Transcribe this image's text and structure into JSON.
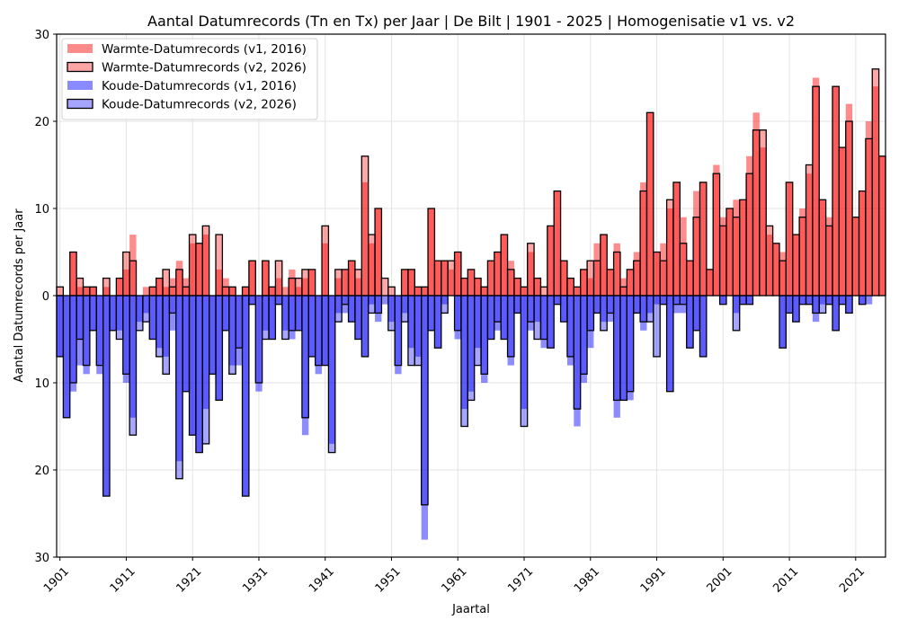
{
  "chart_data": {
    "type": "bar",
    "title": "Aantal Datumrecords (Tn en Tx) per Jaar | De Bilt | 1901 - 2025 | Homogenisatie v1 vs. v2",
    "xlabel": "Jaartal",
    "ylabel": "Aantal Datumrecords per Jaar",
    "ylim": [
      -30,
      30
    ],
    "xlim": [
      1900.5,
      2025.5
    ],
    "yticks": [
      -30,
      -20,
      -10,
      0,
      10,
      20,
      30
    ],
    "ytick_labels": [
      "30",
      "20",
      "10",
      "0",
      "10",
      "20",
      "30"
    ],
    "xticks": [
      1901,
      1911,
      1921,
      1931,
      1941,
      1951,
      1961,
      1971,
      1981,
      1991,
      2001,
      2011,
      2021
    ],
    "xtick_labels": [
      "1901",
      "1911",
      "1921",
      "1931",
      "1941",
      "1951",
      "1961",
      "1971",
      "1981",
      "1991",
      "2001",
      "2011",
      "2021"
    ],
    "grid": true,
    "legend_position": "top-left",
    "start_year": 1901,
    "end_year": 2025,
    "series": [
      {
        "name": "Warmte-Datumrecords (v1, 2016)",
        "direction": "up",
        "color": "#ff0000",
        "opacity": 0.45,
        "outlined": false,
        "values": [
          0,
          0,
          5,
          1,
          1,
          1,
          0,
          1,
          0,
          2,
          3,
          7,
          0,
          1,
          1,
          2,
          1,
          2,
          4,
          2,
          6,
          6,
          7,
          0,
          3,
          2,
          1,
          0,
          1,
          4,
          0,
          4,
          1,
          2,
          1,
          3,
          1,
          2,
          3,
          0,
          6,
          0,
          2,
          3,
          4,
          2,
          13,
          6,
          10,
          0,
          0,
          0,
          3,
          3,
          1,
          1,
          10,
          4,
          4,
          3,
          5,
          2,
          3,
          2,
          1,
          4,
          5,
          7,
          4,
          2,
          1,
          5,
          2,
          0,
          8,
          12,
          4,
          2,
          1,
          3,
          2,
          6,
          7,
          3,
          6,
          2,
          3,
          5,
          13,
          21,
          5,
          6,
          10,
          13,
          9,
          4,
          12,
          13,
          3,
          15,
          9,
          10,
          11,
          11,
          16,
          21,
          17,
          7,
          6,
          5,
          13,
          7,
          10,
          14,
          25,
          11,
          9,
          24,
          17,
          22,
          9,
          12,
          20,
          24,
          16
        ]
      },
      {
        "name": "Warmte-Datumrecords (v2, 2026)",
        "direction": "up",
        "color": "#ff0000",
        "opacity": 0.35,
        "outlined": true,
        "values": [
          1,
          0,
          5,
          2,
          1,
          1,
          0,
          2,
          0,
          2,
          5,
          4,
          0,
          0,
          1,
          2,
          3,
          1,
          3,
          1,
          7,
          6,
          8,
          0,
          7,
          1,
          1,
          0,
          1,
          4,
          0,
          4,
          1,
          4,
          0,
          2,
          2,
          3,
          3,
          0,
          8,
          0,
          3,
          3,
          4,
          3,
          16,
          7,
          10,
          2,
          1,
          0,
          3,
          3,
          1,
          1,
          10,
          4,
          4,
          4,
          5,
          2,
          3,
          2,
          1,
          4,
          5,
          7,
          3,
          2,
          1,
          6,
          2,
          1,
          8,
          12,
          4,
          2,
          1,
          3,
          4,
          4,
          7,
          3,
          5,
          1,
          3,
          4,
          12,
          21,
          5,
          4,
          11,
          13,
          6,
          4,
          9,
          13,
          3,
          14,
          8,
          10,
          9,
          11,
          14,
          19,
          19,
          8,
          6,
          4,
          13,
          7,
          9,
          15,
          24,
          11,
          8,
          24,
          17,
          20,
          9,
          12,
          18,
          26,
          16
        ]
      },
      {
        "name": "Koude-Datumrecords (v1, 2016)",
        "direction": "down",
        "color": "#0000ff",
        "opacity": 0.45,
        "outlined": false,
        "values": [
          7,
          14,
          11,
          8,
          9,
          4,
          9,
          23,
          4,
          4,
          10,
          14,
          3,
          2,
          5,
          6,
          7,
          4,
          19,
          11,
          16,
          18,
          13,
          9,
          12,
          4,
          8,
          8,
          23,
          1,
          11,
          4,
          5,
          1,
          4,
          5,
          4,
          16,
          7,
          9,
          8,
          17,
          2,
          2,
          3,
          5,
          7,
          1,
          3,
          1,
          3,
          9,
          2,
          6,
          7,
          28,
          4,
          6,
          1,
          0,
          5,
          13,
          11,
          6,
          10,
          5,
          4,
          5,
          8,
          2,
          13,
          4,
          3,
          6,
          6,
          1,
          3,
          8,
          15,
          10,
          6,
          2,
          3,
          3,
          14,
          12,
          12,
          2,
          4,
          2,
          1,
          1,
          11,
          2,
          2,
          6,
          4,
          7,
          0,
          0,
          1,
          0,
          2,
          1,
          1,
          0,
          0,
          0,
          0,
          6,
          2,
          3,
          1,
          1,
          3,
          1,
          1,
          4,
          1,
          2,
          0,
          1,
          1,
          0,
          0
        ]
      },
      {
        "name": "Koude-Datumrecords (v2, 2026)",
        "direction": "down",
        "color": "#0000ff",
        "opacity": 0.35,
        "outlined": true,
        "values": [
          7,
          14,
          10,
          5,
          8,
          4,
          8,
          23,
          4,
          5,
          9,
          16,
          4,
          3,
          5,
          7,
          9,
          2,
          21,
          11,
          16,
          18,
          17,
          9,
          12,
          4,
          9,
          6,
          23,
          1,
          10,
          5,
          5,
          1,
          5,
          4,
          4,
          14,
          7,
          8,
          8,
          18,
          3,
          1,
          3,
          5,
          7,
          2,
          2,
          0,
          4,
          8,
          3,
          8,
          8,
          24,
          4,
          6,
          2,
          0,
          4,
          15,
          12,
          8,
          9,
          5,
          3,
          5,
          7,
          2,
          15,
          3,
          5,
          5,
          6,
          1,
          3,
          7,
          13,
          9,
          4,
          2,
          4,
          2,
          12,
          12,
          11,
          2,
          3,
          3,
          7,
          1,
          11,
          1,
          1,
          6,
          4,
          7,
          0,
          0,
          1,
          0,
          4,
          1,
          1,
          0,
          0,
          0,
          0,
          6,
          2,
          3,
          1,
          1,
          2,
          2,
          1,
          4,
          1,
          2,
          0,
          1,
          0,
          0,
          0
        ]
      }
    ],
    "legend": [
      {
        "label": "Warmte-Datumrecords (v1, 2016)",
        "swatch_color": "#ff8a8a",
        "outlined": false
      },
      {
        "label": "Warmte-Datumrecords (v2, 2026)",
        "swatch_color": "#ffa5a5",
        "outlined": true
      },
      {
        "label": "Koude-Datumrecords (v1, 2016)",
        "swatch_color": "#8a8aff",
        "outlined": false
      },
      {
        "label": "Koude-Datumrecords (v2, 2026)",
        "swatch_color": "#a5a5ff",
        "outlined": true
      }
    ]
  }
}
